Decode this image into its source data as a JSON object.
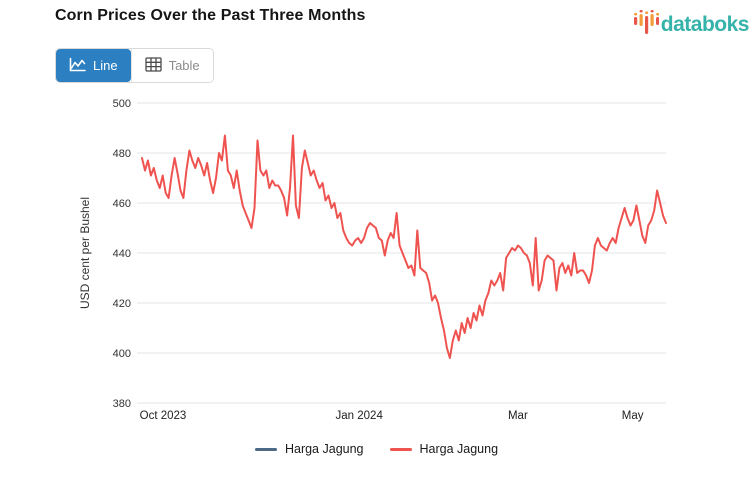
{
  "header": {
    "title": "Corn Prices Over the Past Three Months",
    "brand": "databoks"
  },
  "toolbar": {
    "line_label": "Line",
    "table_label": "Table"
  },
  "legend": {
    "items": [
      {
        "label": "Harga Jagung",
        "color": "#4c6a85"
      },
      {
        "label": "Harga Jagung",
        "color": "#ef5350"
      }
    ]
  },
  "colors": {
    "accent_blue": "#2c7fc0",
    "brand_teal": "#35b2aa",
    "logo_orange": "#f29b38",
    "logo_red": "#e8564a",
    "line_red": "#ef5350",
    "legend_navy": "#4c6a85",
    "grid": "#e4e4e4"
  },
  "chart_data": {
    "type": "line",
    "title": "Corn Prices Over the Past Three Months",
    "xlabel": "",
    "ylabel": "USD cent per Bushel",
    "ylim": [
      380,
      500
    ],
    "y_ticks": [
      500,
      480,
      460,
      440,
      420,
      400,
      380
    ],
    "x_ticks": [
      {
        "label": "Oct 2023",
        "pos": 0.005
      },
      {
        "label": "Jan 2024",
        "pos": 0.42
      },
      {
        "label": "Mar",
        "pos": 0.72
      },
      {
        "label": "May",
        "pos": 0.937
      }
    ],
    "x_range": [
      "Oct 2023",
      "May 2024"
    ],
    "grid": true,
    "legend_position": "bottom",
    "series": [
      {
        "name": "Harga Jagung",
        "color": "#4c6a85",
        "values": []
      },
      {
        "name": "Harga Jagung",
        "color": "#ef5350",
        "values": [
          478,
          473,
          477,
          471,
          474,
          469,
          466,
          471,
          464,
          462,
          471,
          478,
          472,
          465,
          462,
          473,
          481,
          477,
          474,
          478,
          475,
          471,
          476,
          469,
          464,
          470,
          480,
          477,
          487,
          473,
          471,
          466,
          473,
          465,
          459,
          456,
          453,
          450,
          458,
          485,
          473,
          471,
          473,
          466,
          469,
          467,
          467,
          465,
          462,
          455,
          466,
          487,
          459,
          454,
          474,
          481,
          476,
          471,
          473,
          469,
          466,
          468,
          461,
          463,
          458,
          460,
          454,
          456,
          449,
          446,
          444,
          443,
          445,
          446,
          444,
          446,
          450,
          452,
          451,
          450,
          446,
          445,
          439,
          445,
          448,
          446,
          456,
          443,
          440,
          437,
          434,
          435,
          431,
          449,
          434,
          433,
          432,
          428,
          421,
          423,
          420,
          414,
          409,
          402,
          398,
          405,
          409,
          405,
          412,
          408,
          414,
          410,
          416,
          413,
          419,
          415,
          421,
          424,
          429,
          427,
          429,
          432,
          425,
          438,
          440,
          442,
          441,
          443,
          442,
          440,
          439,
          436,
          427,
          446,
          425,
          429,
          437,
          439,
          438,
          437,
          425,
          434,
          436,
          432,
          435,
          431,
          440,
          432,
          433,
          433,
          431,
          428,
          433,
          443,
          446,
          443,
          442,
          441,
          444,
          446,
          444,
          450,
          454,
          458,
          454,
          451,
          453,
          459,
          453,
          447,
          444,
          451,
          453,
          457,
          465,
          460,
          455,
          452
        ]
      }
    ]
  }
}
